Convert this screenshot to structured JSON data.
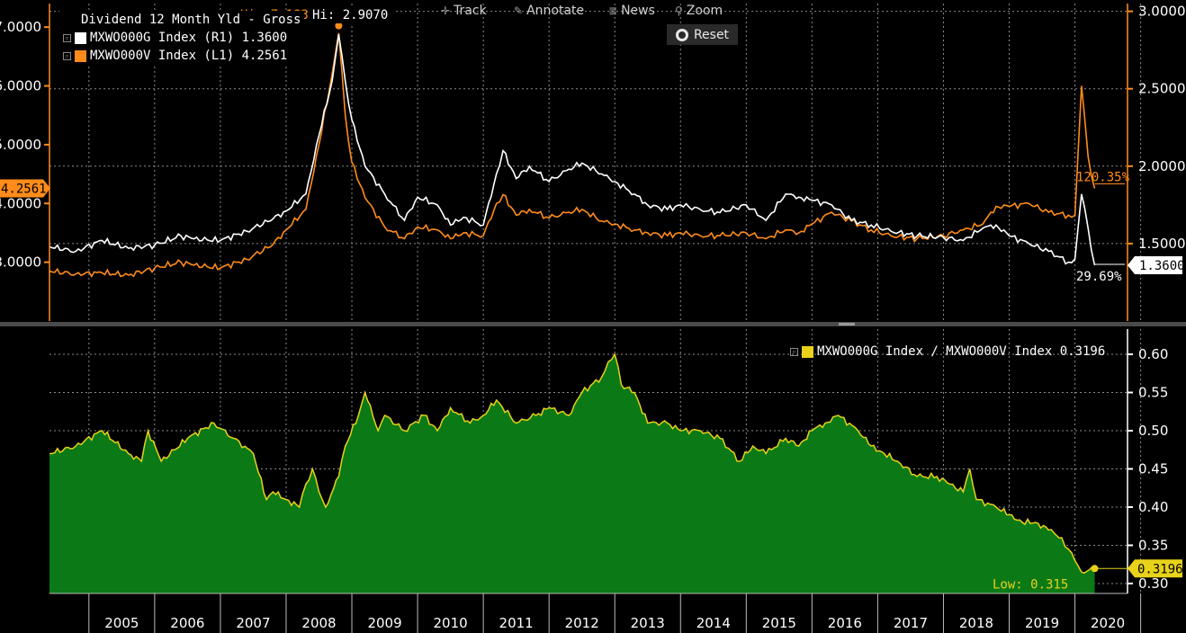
{
  "toolbar": {
    "track_label": "Track",
    "annotate_label": "Annotate",
    "news_label": "News",
    "zoom_label": "Zoom",
    "reset_label": "Reset",
    "track_icon": "crosshair-icon",
    "annotate_icon": "pencil-icon",
    "news_icon": "news-icon",
    "zoom_icon": "magnifier-icon"
  },
  "colors": {
    "growth": "#ffffff",
    "value": "#ff8c1a",
    "ratio_line": "#e8d21a",
    "ratio_fill": "#0b7a16",
    "grid": "#8a8a8a",
    "axis_orange": "#ff8c1a",
    "axis_white": "#ffffff"
  },
  "chart_data": [
    {
      "type": "line",
      "title": "Dividend 12 Month Yld - Gross",
      "series": [
        {
          "name": "MXWO000G Index (R1) 1.3600",
          "axis": "right",
          "color": "#ffffff",
          "x": [
            2004.4,
            2004.8,
            2005.2,
            2005.6,
            2006.0,
            2006.4,
            2006.6,
            2007.0,
            2007.4,
            2007.8,
            2008.0,
            2008.3,
            2008.5,
            2008.7,
            2008.8,
            2008.9,
            2009.0,
            2009.2,
            2009.5,
            2009.8,
            2010.0,
            2010.3,
            2010.5,
            2010.7,
            2011.0,
            2011.2,
            2011.3,
            2011.5,
            2011.7,
            2012.0,
            2012.3,
            2012.5,
            2012.8,
            2013.0,
            2013.3,
            2013.5,
            2013.8,
            2014.0,
            2014.3,
            2014.6,
            2015.0,
            2015.3,
            2015.6,
            2015.8,
            2016.0,
            2016.3,
            2016.6,
            2016.9,
            2017.2,
            2017.6,
            2018.0,
            2018.3,
            2018.6,
            2018.8,
            2019.0,
            2019.3,
            2019.6,
            2019.9,
            2020.0,
            2020.1,
            2020.2,
            2020.3
          ],
          "values": [
            1.48,
            1.45,
            1.52,
            1.47,
            1.49,
            1.55,
            1.53,
            1.52,
            1.58,
            1.66,
            1.71,
            1.82,
            2.2,
            2.55,
            2.85,
            2.55,
            2.3,
            2.0,
            1.82,
            1.65,
            1.8,
            1.75,
            1.62,
            1.67,
            1.62,
            1.95,
            2.1,
            1.92,
            2.0,
            1.9,
            1.98,
            2.02,
            1.95,
            1.9,
            1.82,
            1.75,
            1.72,
            1.75,
            1.72,
            1.7,
            1.75,
            1.65,
            1.82,
            1.8,
            1.78,
            1.75,
            1.65,
            1.62,
            1.58,
            1.55,
            1.54,
            1.52,
            1.6,
            1.62,
            1.55,
            1.5,
            1.45,
            1.38,
            1.4,
            1.82,
            1.6,
            1.36
          ]
        },
        {
          "name": "MXWO000V Index (L1) 4.2561",
          "axis": "left",
          "color": "#ff8c1a",
          "x": [
            2004.4,
            2004.8,
            2005.2,
            2005.6,
            2006.0,
            2006.4,
            2006.6,
            2007.0,
            2007.4,
            2007.8,
            2008.0,
            2008.3,
            2008.5,
            2008.7,
            2008.8,
            2008.9,
            2009.0,
            2009.2,
            2009.5,
            2009.8,
            2010.0,
            2010.3,
            2010.5,
            2010.7,
            2011.0,
            2011.2,
            2011.3,
            2011.5,
            2011.7,
            2012.0,
            2012.3,
            2012.5,
            2012.8,
            2013.0,
            2013.3,
            2013.5,
            2013.8,
            2014.0,
            2014.3,
            2014.6,
            2015.0,
            2015.3,
            2015.6,
            2015.8,
            2016.0,
            2016.3,
            2016.6,
            2016.9,
            2017.2,
            2017.6,
            2018.0,
            2018.3,
            2018.6,
            2018.8,
            2019.0,
            2019.3,
            2019.6,
            2019.9,
            2020.0,
            2020.1,
            2020.2,
            2020.3
          ],
          "values": [
            2.85,
            2.8,
            2.82,
            2.78,
            2.9,
            3.0,
            2.95,
            2.9,
            3.05,
            3.3,
            3.55,
            3.9,
            5.0,
            6.2,
            6.9,
            5.5,
            4.7,
            4.1,
            3.6,
            3.4,
            3.6,
            3.55,
            3.4,
            3.5,
            3.45,
            4.0,
            4.15,
            3.8,
            3.9,
            3.75,
            3.85,
            3.9,
            3.7,
            3.65,
            3.55,
            3.5,
            3.45,
            3.5,
            3.45,
            3.45,
            3.5,
            3.4,
            3.55,
            3.5,
            3.65,
            3.85,
            3.7,
            3.55,
            3.45,
            3.4,
            3.45,
            3.55,
            3.65,
            3.95,
            3.95,
            4.0,
            3.85,
            3.8,
            3.8,
            6.0,
            4.8,
            4.2561
          ]
        }
      ],
      "right_axis": {
        "ticks": [
          "1.5000",
          "2.0000",
          "2.5000",
          "3.0000"
        ],
        "ylim": [
          1.0,
          3.05
        ]
      },
      "left_axis": {
        "ticks": [
          "3.0000",
          "4.0000",
          "5.0000",
          "6.0000",
          "7.0000"
        ],
        "ylim": [
          2.0,
          7.4
        ]
      },
      "annotations": {
        "value_hi": "Hi: 7.1830",
        "growth_hi": "Hi: 2.9070",
        "value_pct": "120.35%",
        "growth_pct": "29.69%",
        "value_last": "4.2561",
        "growth_last": "1.3600"
      }
    },
    {
      "type": "area",
      "series": [
        {
          "name": "MXWO000G Index / MXWO000V Index 0.3196",
          "color": "#e8d21a",
          "x": [
            2004.4,
            2004.8,
            2005.2,
            2005.6,
            2005.8,
            2005.9,
            2006.1,
            2006.5,
            2006.9,
            2007.2,
            2007.5,
            2007.7,
            2007.8,
            2008.0,
            2008.2,
            2008.3,
            2008.4,
            2008.5,
            2008.6,
            2008.8,
            2008.9,
            2009.1,
            2009.2,
            2009.4,
            2009.5,
            2009.8,
            2010.1,
            2010.3,
            2010.5,
            2010.8,
            2011.0,
            2011.2,
            2011.5,
            2011.8,
            2012.0,
            2012.3,
            2012.5,
            2012.8,
            2012.9,
            2013.0,
            2013.1,
            2013.3,
            2013.5,
            2013.8,
            2014.0,
            2014.3,
            2014.6,
            2014.9,
            2015.1,
            2015.3,
            2015.6,
            2015.8,
            2016.0,
            2016.2,
            2016.4,
            2016.7,
            2016.9,
            2017.1,
            2017.3,
            2017.6,
            2017.9,
            2018.1,
            2018.3,
            2018.4,
            2018.5,
            2018.8,
            2019.0,
            2019.2,
            2019.4,
            2019.6,
            2019.8,
            2019.9,
            2020.0,
            2020.1,
            2020.3
          ],
          "values": [
            0.47,
            0.48,
            0.5,
            0.47,
            0.46,
            0.5,
            0.46,
            0.49,
            0.51,
            0.49,
            0.47,
            0.41,
            0.42,
            0.41,
            0.4,
            0.43,
            0.45,
            0.42,
            0.4,
            0.44,
            0.48,
            0.52,
            0.55,
            0.5,
            0.52,
            0.5,
            0.52,
            0.5,
            0.53,
            0.51,
            0.52,
            0.54,
            0.51,
            0.52,
            0.53,
            0.52,
            0.55,
            0.57,
            0.59,
            0.6,
            0.56,
            0.55,
            0.51,
            0.51,
            0.5,
            0.5,
            0.49,
            0.46,
            0.48,
            0.47,
            0.49,
            0.48,
            0.5,
            0.51,
            0.52,
            0.5,
            0.48,
            0.47,
            0.46,
            0.44,
            0.44,
            0.43,
            0.42,
            0.45,
            0.41,
            0.4,
            0.39,
            0.38,
            0.38,
            0.37,
            0.36,
            0.345,
            0.33,
            0.315,
            0.3196
          ]
        }
      ],
      "right_axis": {
        "ticks": [
          "0.30",
          "0.35",
          "0.40",
          "0.45",
          "0.50",
          "0.55",
          "0.60"
        ],
        "ylim": [
          0.287,
          0.633
        ]
      },
      "annotations": {
        "low": "Low: 0.315",
        "last": "0.3196"
      }
    }
  ],
  "x_axis": {
    "ticks": [
      "2005",
      "2006",
      "2007",
      "2008",
      "2009",
      "2010",
      "2011",
      "2012",
      "2013",
      "2014",
      "2015",
      "2016",
      "2017",
      "2018",
      "2019",
      "2020"
    ],
    "xlim": [
      2004.4,
      2020.8
    ]
  }
}
